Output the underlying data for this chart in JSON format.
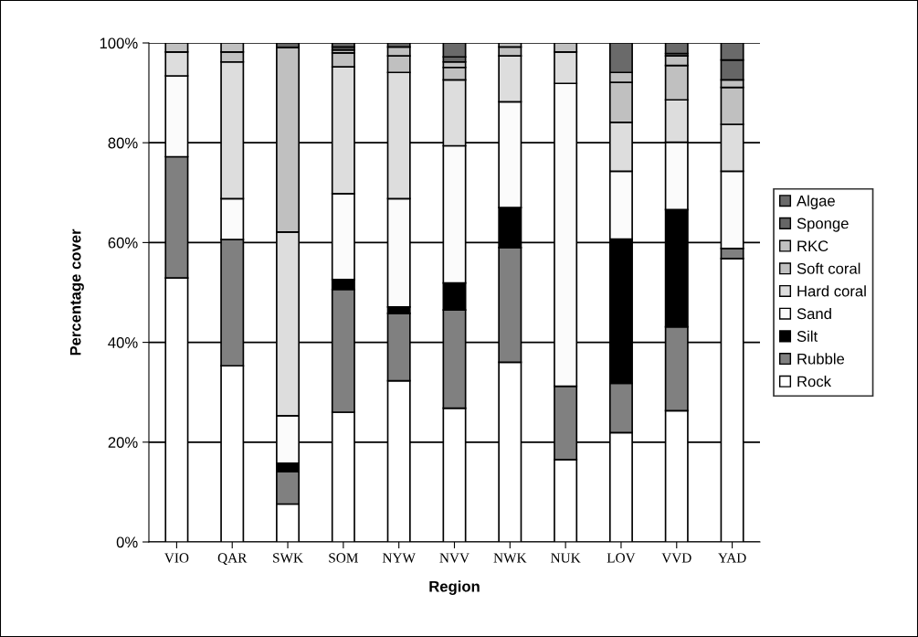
{
  "chart_data": {
    "type": "bar",
    "stacked": true,
    "xlabel": "Region",
    "ylabel": "Percentage cover",
    "categories": [
      "VIO",
      "QAR",
      "SWK",
      "SOM",
      "NYW",
      "NVV",
      "NWK",
      "NUK",
      "LOV",
      "VVD",
      "YAD"
    ],
    "series": [
      {
        "name": "Rock",
        "color": "#ffffff",
        "values": [
          52.9,
          35.3,
          7.6,
          26.0,
          32.3,
          26.8,
          36.0,
          16.5,
          21.9,
          26.3,
          56.8
        ]
      },
      {
        "name": "Rubble",
        "color": "#808080",
        "values": [
          24.3,
          25.3,
          6.5,
          24.6,
          13.5,
          19.7,
          23.0,
          14.7,
          9.9,
          16.8,
          2.0
        ]
      },
      {
        "name": "Silt",
        "color": "#000000",
        "values": [
          0,
          0,
          1.7,
          2.0,
          1.3,
          5.4,
          8.0,
          0,
          28.9,
          23.5,
          0
        ]
      },
      {
        "name": "Sand",
        "color": "#fbfbfb",
        "values": [
          16.2,
          8.2,
          9.5,
          17.2,
          21.7,
          27.5,
          21.2,
          60.7,
          13.6,
          13.5,
          15.5
        ]
      },
      {
        "name": "Hard coral",
        "color": "#dddddd",
        "values": [
          4.8,
          27.4,
          36.8,
          25.4,
          25.3,
          13.2,
          9.2,
          6.3,
          9.8,
          8.5,
          9.4
        ]
      },
      {
        "name": "Soft coral",
        "color": "#c0c0c0",
        "values": [
          1.8,
          2.0,
          37.0,
          2.8,
          3.3,
          2.5,
          1.8,
          1.8,
          8.0,
          6.9,
          7.4
        ]
      },
      {
        "name": "RKC",
        "color": "#c0c0c0",
        "values": [
          0,
          1.8,
          0,
          0.6,
          1.8,
          1.1,
          0.8,
          0,
          2.0,
          1.9,
          1.5
        ]
      },
      {
        "name": "Sponge",
        "color": "#666666",
        "values": [
          0,
          0,
          0.9,
          0.6,
          0.8,
          1.0,
          0,
          0,
          0,
          0.5,
          4.0
        ]
      },
      {
        "name": "Algae",
        "color": "#6a6a6a",
        "values": [
          0,
          0,
          0,
          0.8,
          0,
          2.8,
          0,
          0,
          5.9,
          2.1,
          3.4
        ]
      }
    ],
    "ylim": [
      0,
      100
    ],
    "yticks": [
      {
        "value": 0,
        "label": "0%"
      },
      {
        "value": 20,
        "label": "20%"
      },
      {
        "value": 40,
        "label": "40%"
      },
      {
        "value": 60,
        "label": "60%"
      },
      {
        "value": 80,
        "label": "80%"
      },
      {
        "value": 100,
        "label": "100%"
      }
    ],
    "grid": "y",
    "legend": "right"
  }
}
